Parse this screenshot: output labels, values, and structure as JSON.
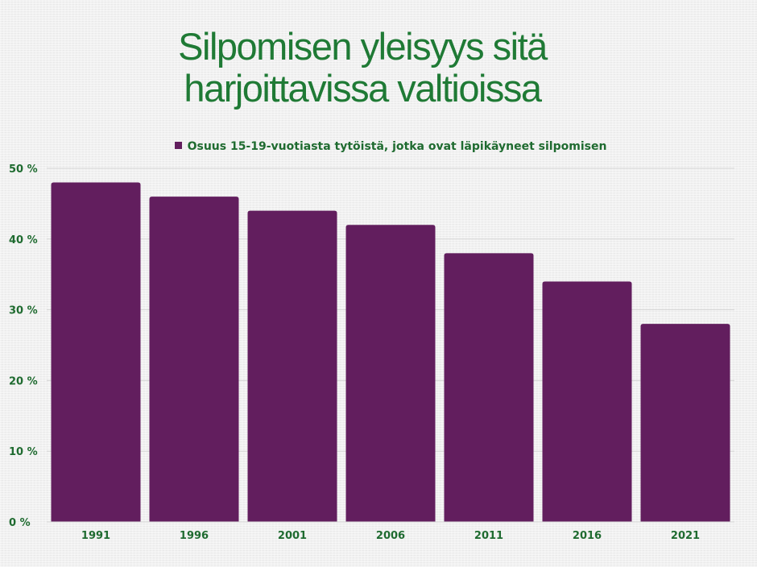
{
  "chart_data": {
    "type": "bar",
    "title_lines": [
      "Silpomisen yleisyys sitä",
      "harjoittavissa valtioissa"
    ],
    "categories": [
      "1991",
      "1996",
      "2001",
      "2006",
      "2011",
      "2016",
      "2021"
    ],
    "series": [
      {
        "name": "Osuus 15-19-vuotiasta tytöistä, jotka ovat läpikäyneet silpomisen",
        "values": [
          48,
          46,
          44,
          42,
          38,
          34,
          28
        ]
      }
    ],
    "ylim": [
      0,
      50
    ],
    "yticks": [
      0,
      10,
      20,
      30,
      40,
      50
    ],
    "ytick_labels": [
      "0 %",
      "10 %",
      "20 %",
      "30 %",
      "40 %",
      "50 %"
    ],
    "grid": true,
    "legend_position": "top-center",
    "colors": {
      "bar": "#621e5e",
      "text": "#1f6b30",
      "title": "#1f7a35",
      "grid": "#d6d6d6"
    }
  }
}
